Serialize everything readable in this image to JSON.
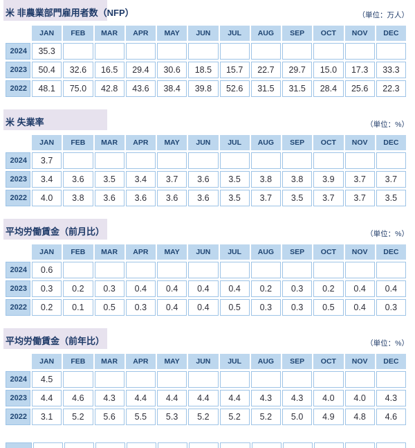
{
  "colors": {
    "header_bg": "#BDD7EE",
    "grid_border": "#9DC3E6",
    "title_text": "#1E3A68",
    "header_text": "#1F4572",
    "value_text": "#2E2E38",
    "title_highlight": "#E7E2EE"
  },
  "months": [
    "JAN",
    "FEB",
    "MAR",
    "APR",
    "MAY",
    "JUN",
    "JUL",
    "AUG",
    "SEP",
    "OCT",
    "NOV",
    "DEC"
  ],
  "chart_data": [
    {
      "type": "table",
      "title": "米 非農業部門雇用者数（NFP）",
      "unit_label": "（単位：万人）",
      "unit": "万人",
      "columns": [
        "JAN",
        "FEB",
        "MAR",
        "APR",
        "MAY",
        "JUN",
        "JUL",
        "AUG",
        "SEP",
        "OCT",
        "NOV",
        "DEC"
      ],
      "rows": [
        {
          "year": "2024",
          "values": [
            "35.3",
            "",
            "",
            "",
            "",
            "",
            "",
            "",
            "",
            "",
            "",
            ""
          ]
        },
        {
          "year": "2023",
          "values": [
            "50.4",
            "32.6",
            "16.5",
            "29.4",
            "30.6",
            "18.5",
            "15.7",
            "22.7",
            "29.7",
            "15.0",
            "17.3",
            "33.3"
          ]
        },
        {
          "year": "2022",
          "values": [
            "48.1",
            "75.0",
            "42.8",
            "43.6",
            "38.4",
            "39.8",
            "52.6",
            "31.5",
            "31.5",
            "28.4",
            "25.6",
            "22.3"
          ]
        }
      ]
    },
    {
      "type": "table",
      "title": "米 失業率",
      "unit_label": "（単位：%）",
      "unit": "%",
      "columns": [
        "JAN",
        "FEB",
        "MAR",
        "APR",
        "MAY",
        "JUN",
        "JUL",
        "AUG",
        "SEP",
        "OCT",
        "NOV",
        "DEC"
      ],
      "rows": [
        {
          "year": "2024",
          "values": [
            "3.7",
            "",
            "",
            "",
            "",
            "",
            "",
            "",
            "",
            "",
            "",
            ""
          ]
        },
        {
          "year": "2023",
          "values": [
            "3.4",
            "3.6",
            "3.5",
            "3.4",
            "3.7",
            "3.6",
            "3.5",
            "3.8",
            "3.8",
            "3.9",
            "3.7",
            "3.7"
          ]
        },
        {
          "year": "2022",
          "values": [
            "4.0",
            "3.8",
            "3.6",
            "3.6",
            "3.6",
            "3.6",
            "3.5",
            "3.7",
            "3.5",
            "3.7",
            "3.7",
            "3.5"
          ]
        }
      ]
    },
    {
      "type": "table",
      "title": "平均労働賃金（前月比）",
      "unit_label": "（単位：%）",
      "unit": "%",
      "columns": [
        "JAN",
        "FEB",
        "MAR",
        "APR",
        "MAY",
        "JUN",
        "JUL",
        "AUG",
        "SEP",
        "OCT",
        "NOV",
        "DEC"
      ],
      "rows": [
        {
          "year": "2024",
          "values": [
            "0.6",
            "",
            "",
            "",
            "",
            "",
            "",
            "",
            "",
            "",
            "",
            ""
          ]
        },
        {
          "year": "2023",
          "values": [
            "0.3",
            "0.2",
            "0.3",
            "0.4",
            "0.4",
            "0.4",
            "0.4",
            "0.2",
            "0.3",
            "0.2",
            "0.4",
            "0.4"
          ]
        },
        {
          "year": "2022",
          "values": [
            "0.2",
            "0.1",
            "0.5",
            "0.3",
            "0.4",
            "0.4",
            "0.5",
            "0.3",
            "0.3",
            "0.5",
            "0.4",
            "0.3"
          ]
        }
      ]
    },
    {
      "type": "table",
      "title": "平均労働賃金（前年比）",
      "unit_label": "（単位：%）",
      "unit": "%",
      "columns": [
        "JAN",
        "FEB",
        "MAR",
        "APR",
        "MAY",
        "JUN",
        "JUL",
        "AUG",
        "SEP",
        "OCT",
        "NOV",
        "DEC"
      ],
      "rows": [
        {
          "year": "2024",
          "values": [
            "4.5",
            "",
            "",
            "",
            "",
            "",
            "",
            "",
            "",
            "",
            "",
            ""
          ]
        },
        {
          "year": "2023",
          "values": [
            "4.4",
            "4.6",
            "4.3",
            "4.4",
            "4.4",
            "4.4",
            "4.4",
            "4.3",
            "4.3",
            "4.0",
            "4.0",
            "4.3"
          ]
        },
        {
          "year": "2022",
          "values": [
            "3.1",
            "5.2",
            "5.6",
            "5.5",
            "5.3",
            "5.2",
            "5.2",
            "5.2",
            "5.0",
            "4.9",
            "4.8",
            "4.6"
          ]
        }
      ]
    }
  ]
}
